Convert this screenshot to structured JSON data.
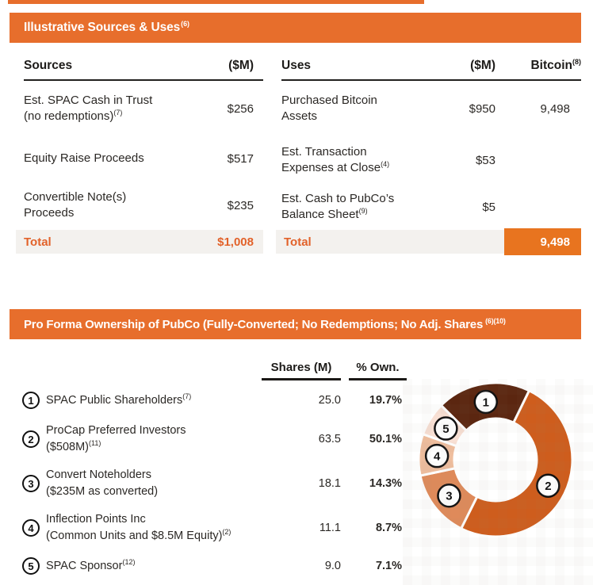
{
  "sources_uses": {
    "banner": {
      "title": "Illustrative Sources & Uses",
      "sup": "(6)"
    },
    "sources": {
      "col_label": "Sources",
      "col_value": "($M)",
      "rows": [
        {
          "label": "Est. SPAC Cash in Trust\n(no redemptions)",
          "sup": "(7)",
          "value": "$256"
        },
        {
          "label": "Equity Raise Proceeds",
          "sup": "",
          "value": "$517"
        },
        {
          "label": "Convertible Note(s)\nProceeds",
          "sup": "",
          "value": "$235"
        }
      ],
      "total": {
        "label": "Total",
        "value": "$1,008"
      }
    },
    "uses": {
      "col_label": "Uses",
      "col_value": "($M)",
      "col_bitcoin": "Bitcoin",
      "col_bitcoin_sup": "(8)",
      "rows": [
        {
          "label": "Purchased Bitcoin\nAssets",
          "sup": "",
          "value": "$950",
          "bitcoin": "9,498"
        },
        {
          "label": "Est. Transaction\nExpenses at Close",
          "sup": "(4)",
          "value": "$53",
          "bitcoin": ""
        },
        {
          "label": "Est. Cash to PubCo’s\nBalance Sheet",
          "sup": "(9)",
          "value": "$5",
          "bitcoin": ""
        }
      ],
      "total": {
        "label": "Total",
        "value": "$1,008",
        "bitcoin": "9,498"
      }
    }
  },
  "ownership": {
    "banner": {
      "title": "Pro Forma Ownership of PubCo (Fully-Converted; No Redemptions; No Adj. Shares",
      "sup": "(6)(10)"
    },
    "col_shares": "Shares (M)",
    "col_own": "% Own.",
    "rows": [
      {
        "num": "1",
        "label": "SPAC Public Shareholders",
        "sup": "(7)",
        "shares": "25.0",
        "own": "19.7%"
      },
      {
        "num": "2",
        "label": "ProCap Preferred Investors\n($508M)",
        "sup": "(11)",
        "shares": "63.5",
        "own": "50.1%"
      },
      {
        "num": "3",
        "label": "Convert Noteholders\n($235M as converted)",
        "sup": "",
        "shares": "18.1",
        "own": "14.3%"
      },
      {
        "num": "4",
        "label": "Inflection Points Inc\n(Common Units and $8.5M Equity)",
        "sup": "(2)",
        "shares": "11.1",
        "own": "8.7%"
      },
      {
        "num": "5",
        "label": "SPAC Sponsor",
        "sup": "(12)",
        "shares": "9.0",
        "own": "7.1%"
      }
    ]
  },
  "chart_data": {
    "type": "pie",
    "donut": true,
    "title": "Pro Forma Ownership of PubCo (Fully-Converted; No Redemptions)",
    "labels": [
      "SPAC Public Shareholders",
      "ProCap Preferred Investors",
      "Convert Noteholders",
      "Inflection Points Inc",
      "SPAC Sponsor"
    ],
    "badges": [
      "1",
      "2",
      "3",
      "4",
      "5"
    ],
    "values": [
      19.7,
      50.1,
      14.3,
      8.7,
      7.1
    ],
    "colors": [
      "#5b2610",
      "#ce5d1d",
      "#df8a5a",
      "#efbe9e",
      "#f8e0d4"
    ],
    "start_angle_deg": -45,
    "direction": "clockwise",
    "legend_position": "none"
  },
  "colors": {
    "banner_orange": "#e76e2c",
    "accent_orange": "#e2622a",
    "bitcoin_box_orange": "#e8741f",
    "total_band_gray": "#f3f1ee",
    "text_dark": "#2b2825"
  }
}
